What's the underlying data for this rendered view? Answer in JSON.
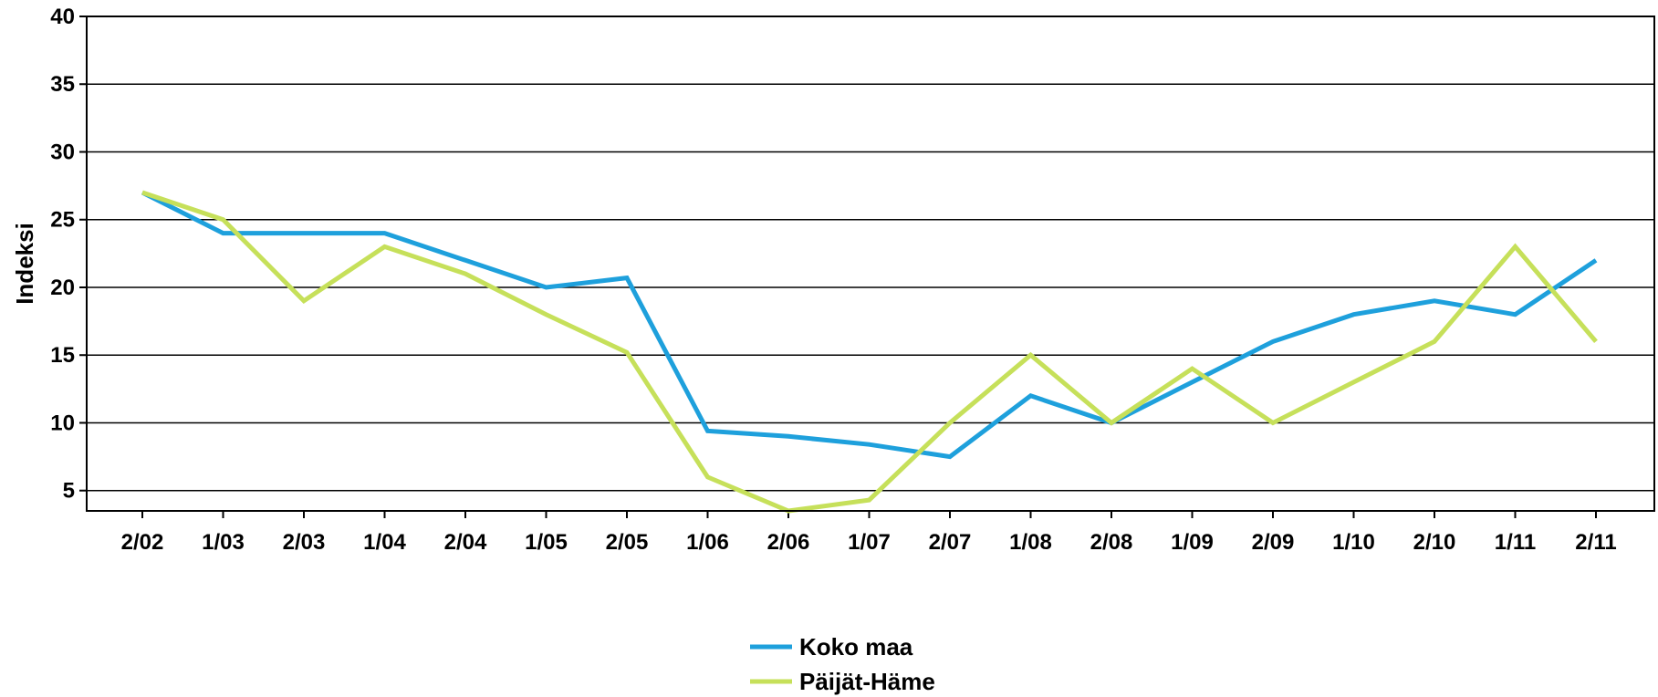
{
  "chart_data": {
    "type": "line",
    "ylabel": "Indeksi",
    "xlabel": "",
    "title": "",
    "ylim": [
      3.5,
      40
    ],
    "yticks": [
      5,
      10,
      15,
      20,
      25,
      30,
      35,
      40
    ],
    "grid": "horizontal",
    "legend_position": "bottom-center",
    "categories": [
      "2/02",
      "1/03",
      "2/03",
      "1/04",
      "2/04",
      "1/05",
      "2/05",
      "1/06",
      "2/06",
      "1/07",
      "2/07",
      "1/08",
      "2/08",
      "1/09",
      "2/09",
      "1/10",
      "2/10",
      "1/11",
      "2/11"
    ],
    "series": [
      {
        "name": "Koko maa",
        "color": "#1ea0dc",
        "values": [
          27,
          24,
          24,
          24,
          22,
          20,
          20.7,
          9.4,
          9,
          8.4,
          7.5,
          12,
          10,
          13,
          16,
          18,
          19,
          18,
          22
        ]
      },
      {
        "name": "Päijät-Häme",
        "color": "#c6e05a",
        "values": [
          27,
          25,
          19,
          23,
          21,
          18,
          15.2,
          6,
          3.5,
          4.3,
          10,
          15,
          10,
          14,
          10,
          13,
          16,
          23,
          16
        ]
      }
    ]
  }
}
